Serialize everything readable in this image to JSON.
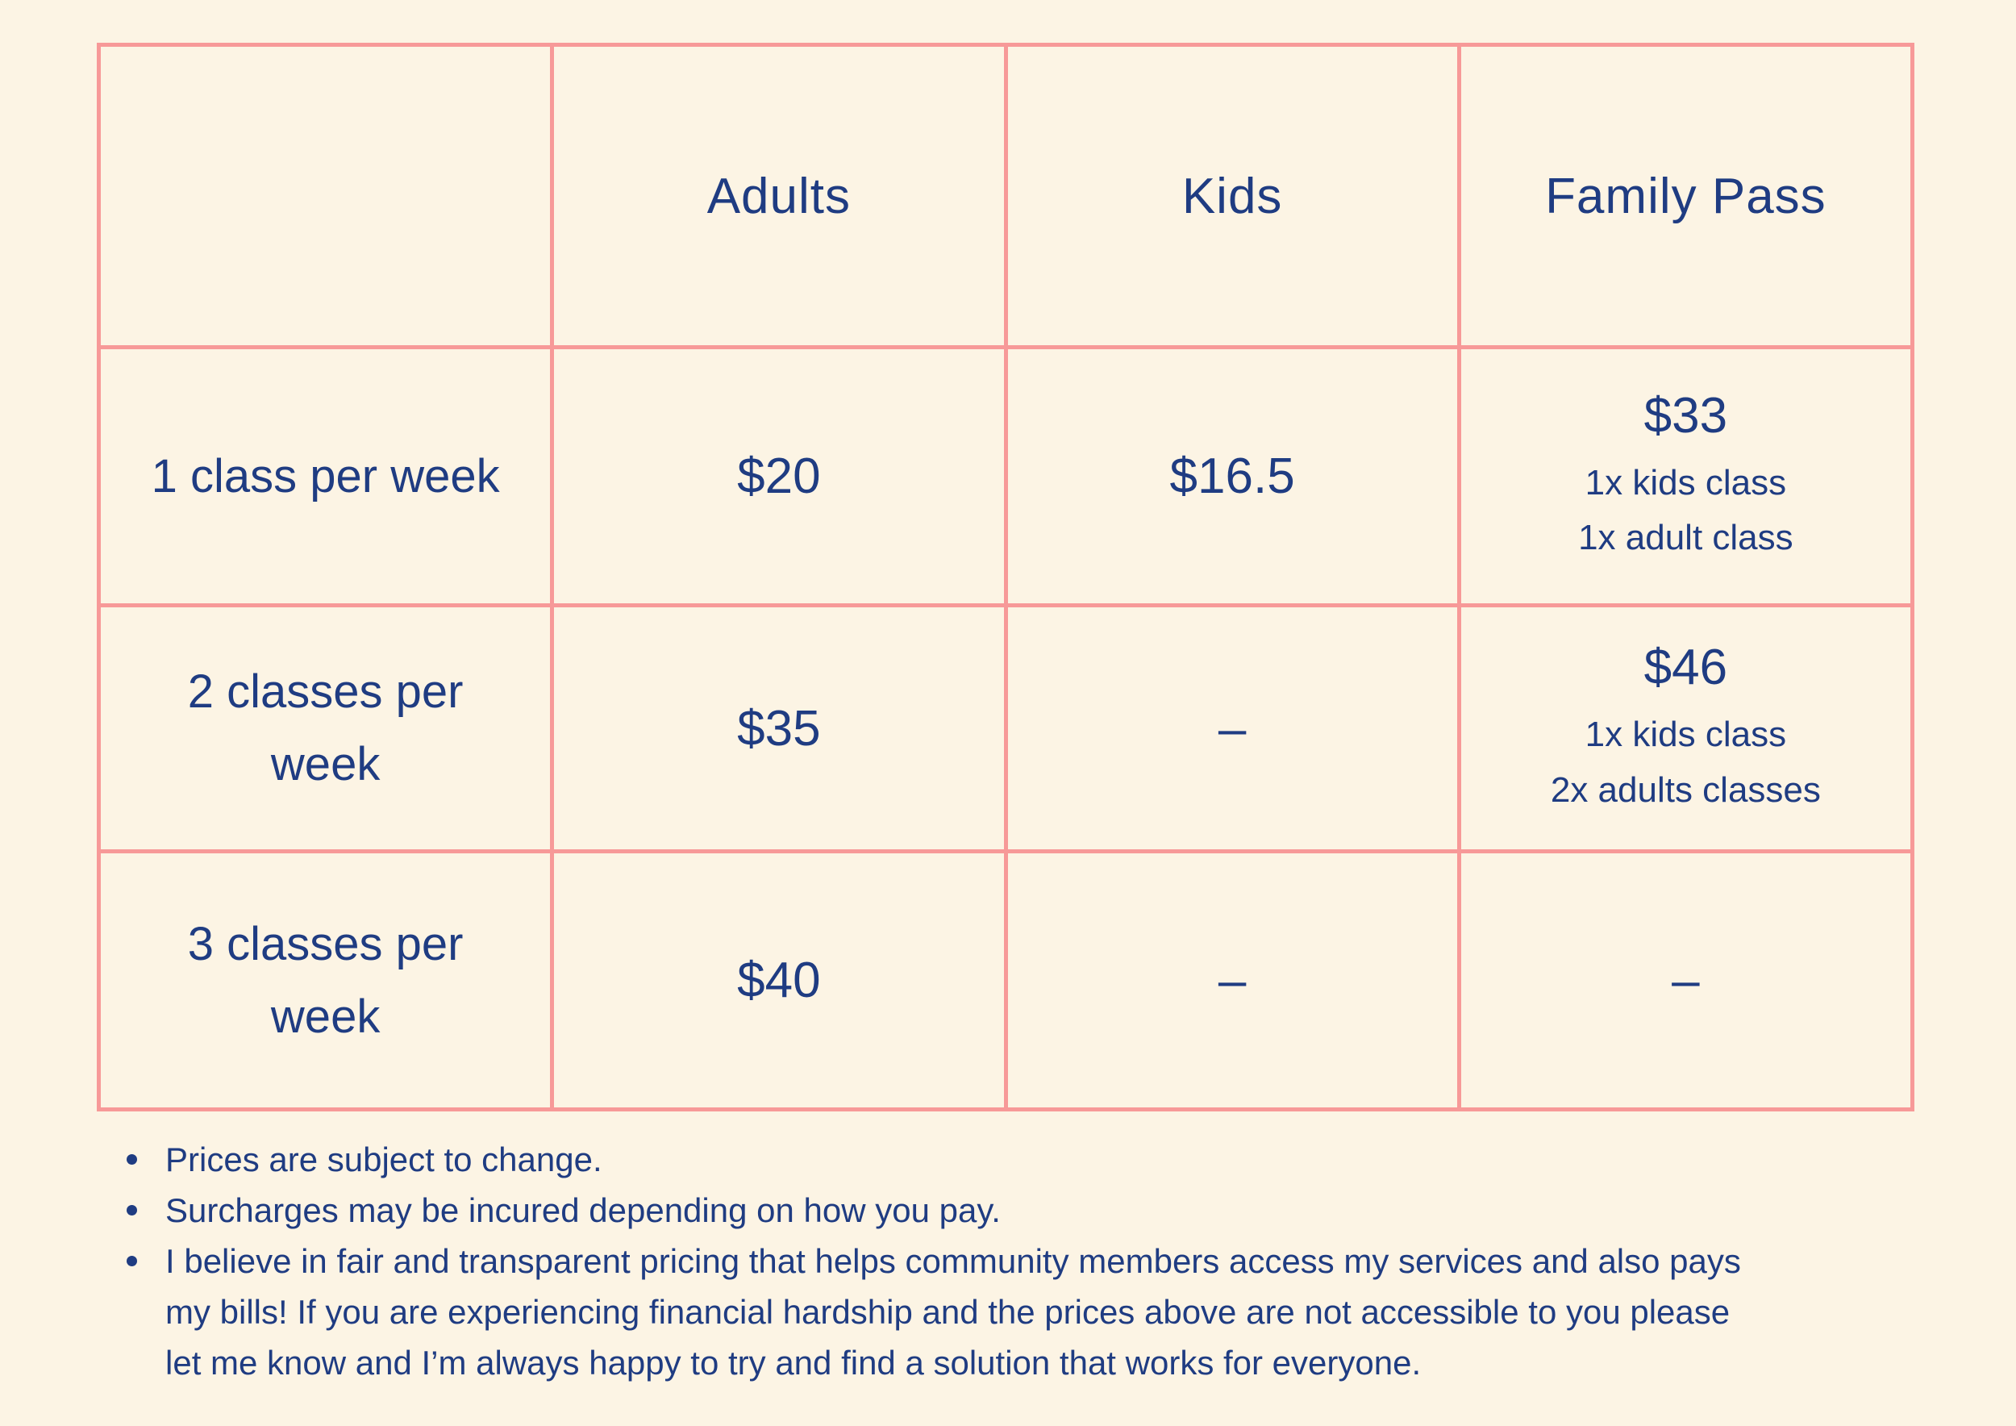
{
  "theme": {
    "background": "#FCF4E4",
    "grid": "#F79998",
    "ink": "#1F3C82"
  },
  "table": {
    "columns": [
      "",
      "Adults",
      "Kids",
      "Family Pass"
    ],
    "rows": [
      {
        "label": "1 class per week",
        "adults": "$20",
        "kids": "$16.5",
        "family_price": "$33",
        "family_details": "1x kids class\n1x adult class"
      },
      {
        "label": "2 classes per\nweek",
        "adults": "$35",
        "kids": "–",
        "family_price": "$46",
        "family_details": "1x kids class\n2x adults classes"
      },
      {
        "label": "3 classes per\nweek",
        "adults": "$40",
        "kids": "–",
        "family_price": "–",
        "family_details": ""
      }
    ]
  },
  "notes": {
    "items": [
      "Prices are subject to change.",
      "Surcharges may be incured depending on how you pay.",
      "I believe in fair and transparent pricing that helps community members access my services and also pays\nmy bills!  If you are experiencing financial hardship and the prices above are not accessible to you please\nlet me know and I’m always happy to try and find a solution that works for everyone."
    ]
  }
}
